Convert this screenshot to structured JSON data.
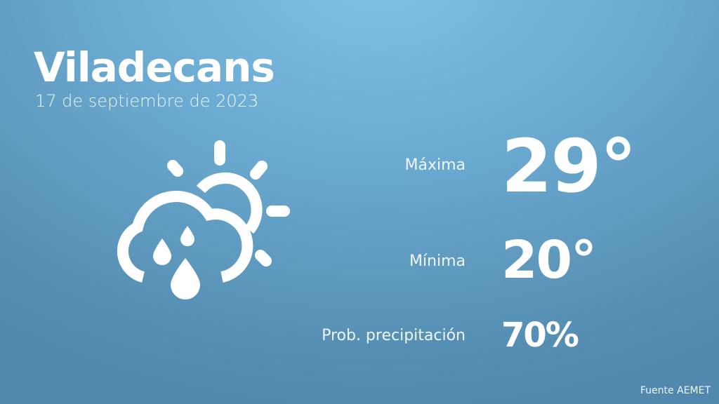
{
  "location": "Viladecans",
  "date": "17 de septiembre de 2023",
  "weather_icon": "cloud-sun-rain-icon",
  "stats": {
    "max_label": "Máxima",
    "max_value": "29°",
    "min_label": "Mínima",
    "min_value": "20°",
    "precip_label": "Prob. precipitación",
    "precip_value": "70%"
  },
  "source": "Fuente AEMET",
  "colors": {
    "background_top": "#80c2e6",
    "background_bottom": "#5089ad",
    "text": "#ffffff"
  }
}
